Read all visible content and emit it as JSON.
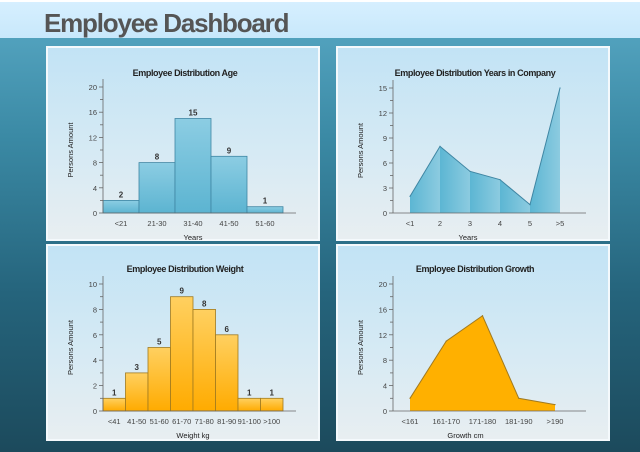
{
  "header": {
    "title": "Employee Dashboard"
  },
  "colors": {
    "blue_fill": "#6dbfd9",
    "blue_stroke": "#3f86a3",
    "orange_fill": "#ffb300",
    "orange_stroke": "#a07a20"
  },
  "chart_data": [
    {
      "type": "bar",
      "title": "Employee Distribution Age",
      "xlabel": "Years",
      "ylabel": "Persons Amount",
      "categories": [
        "<21",
        "21-30",
        "31-40",
        "41-50",
        "51-60"
      ],
      "values": [
        2,
        8,
        15,
        9,
        1
      ],
      "ylim": [
        0,
        20
      ],
      "yticks": [
        0,
        4,
        8,
        12,
        16,
        20
      ],
      "data_labels": true,
      "color": "blue",
      "grid": false
    },
    {
      "type": "area",
      "title": "Employee Distribution Years in Company",
      "xlabel": "Years",
      "ylabel": "Persons Amount",
      "categories": [
        "<1",
        "2",
        "3",
        "4",
        "5",
        ">5"
      ],
      "values": [
        2,
        8,
        5,
        4,
        1,
        15
      ],
      "ylim": [
        0,
        15
      ],
      "yticks": [
        0,
        3,
        6,
        9,
        12,
        15
      ],
      "data_labels": false,
      "color": "blue",
      "grid": false
    },
    {
      "type": "bar",
      "title": "Employee Distribution Weight",
      "xlabel": "Weight kg",
      "ylabel": "Persons Amount",
      "categories": [
        "<41",
        "41-50",
        "51-60",
        "61-70",
        "71-80",
        "81-90",
        "91-100",
        ">100"
      ],
      "values": [
        1,
        3,
        5,
        9,
        8,
        6,
        1,
        1
      ],
      "ylim": [
        0,
        10
      ],
      "yticks": [
        0,
        2,
        4,
        6,
        8,
        10
      ],
      "data_labels": true,
      "color": "orange",
      "grid": false
    },
    {
      "type": "area",
      "title": "Employee Distribution Growth",
      "xlabel": "Growth cm",
      "ylabel": "Persons Amount",
      "categories": [
        "<161",
        "161-170",
        "171-180",
        "181-190",
        ">190"
      ],
      "values": [
        2,
        11,
        15,
        2,
        1
      ],
      "ylim": [
        0,
        20
      ],
      "yticks": [
        0,
        4,
        8,
        12,
        16,
        20
      ],
      "data_labels": false,
      "color": "orange",
      "grid": false
    }
  ]
}
